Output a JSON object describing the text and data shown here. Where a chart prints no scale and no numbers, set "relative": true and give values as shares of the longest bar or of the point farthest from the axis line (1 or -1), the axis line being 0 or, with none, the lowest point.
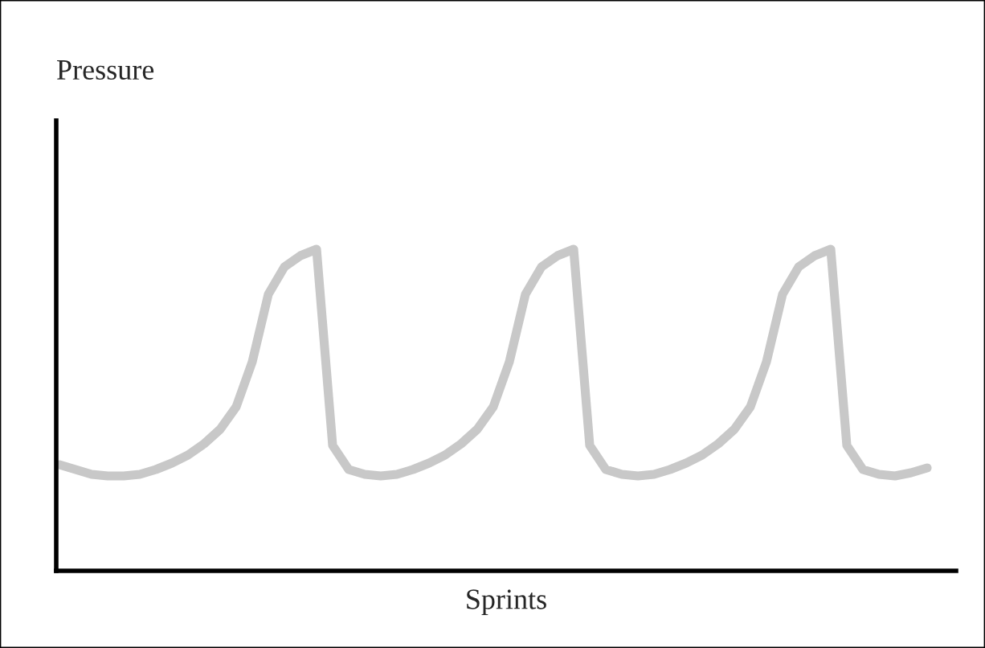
{
  "chart_data": {
    "type": "line",
    "relative": true,
    "annotations": [
      "Pressure"
    ],
    "xlabel": "Sprints",
    "color": "#c8c8c8",
    "tick_labels": false,
    "grid": false,
    "legend": false,
    "marker": "none",
    "line_style": "solid",
    "categories": [
      null,
      null,
      null,
      null,
      null,
      null,
      null,
      null,
      null,
      null,
      null,
      null,
      null,
      null,
      null,
      null,
      null,
      null,
      null,
      null,
      null,
      null,
      null,
      null,
      null,
      null,
      null,
      null,
      null,
      null,
      null,
      null,
      null,
      null,
      null,
      null,
      null,
      null,
      null,
      null,
      null,
      null,
      null,
      null,
      null,
      null,
      null,
      null,
      null,
      null,
      null,
      null,
      null,
      null,
      null
    ],
    "values": [
      0.33,
      0.315,
      0.3,
      0.295,
      0.295,
      0.3,
      0.315,
      0.335,
      0.36,
      0.395,
      0.44,
      0.51,
      0.65,
      0.86,
      0.945,
      0.98,
      1,
      0.39,
      0.315,
      0.3,
      0.295,
      0.3,
      0.315,
      0.335,
      0.36,
      0.395,
      0.44,
      0.51,
      0.65,
      0.86,
      0.945,
      0.98,
      1,
      0.39,
      0.315,
      0.3,
      0.295,
      0.3,
      0.315,
      0.335,
      0.36,
      0.395,
      0.44,
      0.51,
      0.65,
      0.86,
      0.945,
      0.98,
      1,
      0.39,
      0.315,
      0.3,
      0.295,
      0.305,
      0.32
    ]
  }
}
